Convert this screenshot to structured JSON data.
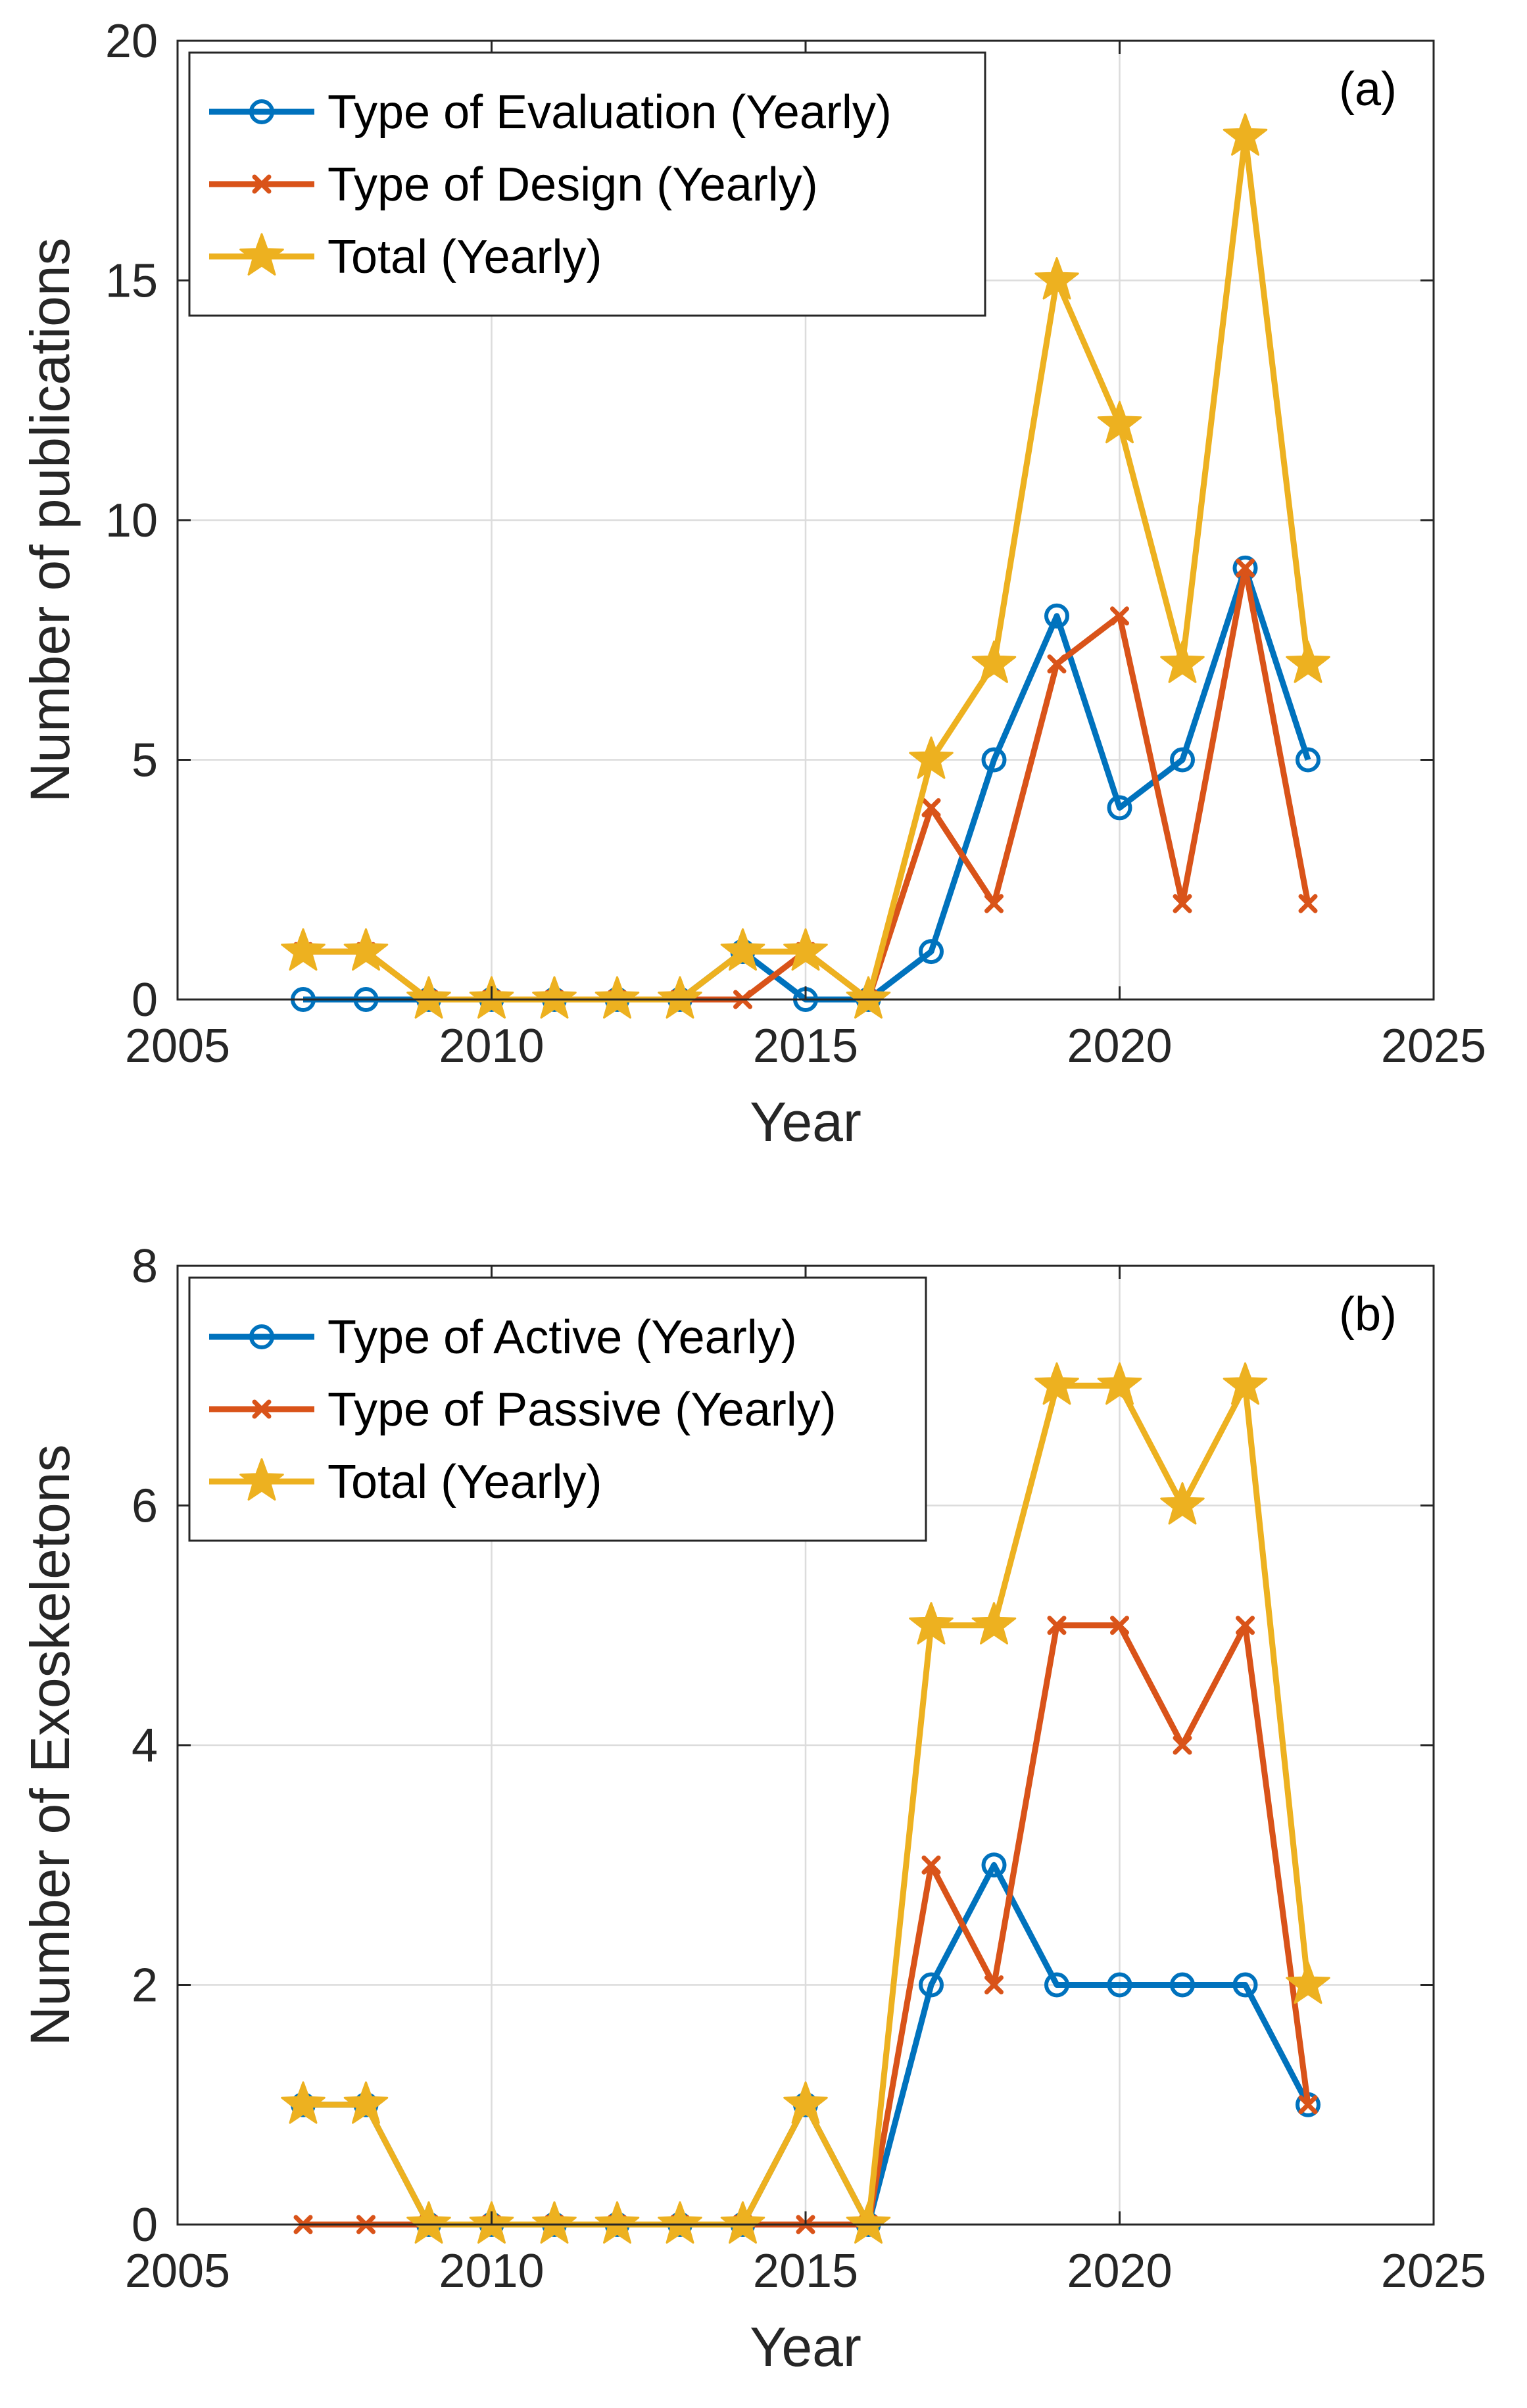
{
  "chart_data": [
    {
      "type": "line",
      "panel_label": "(a)",
      "title": "",
      "xlabel": "Year",
      "ylabel": "Number of publications",
      "xlim": [
        2005,
        2025
      ],
      "ylim": [
        0,
        20
      ],
      "xticks": [
        "2005",
        "2010",
        "2015",
        "2020",
        "2025"
      ],
      "yticks": [
        "0",
        "5",
        "10",
        "15",
        "20"
      ],
      "grid": true,
      "legend_position": "top-left",
      "x": [
        2007,
        2008,
        2009,
        2010,
        2011,
        2012,
        2013,
        2014,
        2015,
        2016,
        2017,
        2018,
        2019,
        2020,
        2021,
        2022,
        2023
      ],
      "series": [
        {
          "name": "Type of Evaluation (Yearly)",
          "marker": "circle",
          "color": "#0072BD",
          "values": [
            0,
            0,
            0,
            0,
            0,
            0,
            0,
            1,
            0,
            0,
            1,
            5,
            8,
            4,
            5,
            9,
            5
          ]
        },
        {
          "name": "Type of Design (Yearly)",
          "marker": "x",
          "color": "#D95319",
          "values": [
            1,
            1,
            0,
            0,
            0,
            0,
            0,
            0,
            1,
            0,
            4,
            2,
            7,
            8,
            2,
            9,
            2
          ]
        },
        {
          "name": "Total (Yearly)",
          "marker": "star",
          "color": "#EDB120",
          "values": [
            1,
            1,
            0,
            0,
            0,
            0,
            0,
            1,
            1,
            0,
            5,
            7,
            15,
            12,
            7,
            18,
            7
          ]
        }
      ]
    },
    {
      "type": "line",
      "panel_label": "(b)",
      "title": "",
      "xlabel": "Year",
      "ylabel": "Number of Exoskeletons",
      "xlim": [
        2005,
        2025
      ],
      "ylim": [
        0,
        8
      ],
      "xticks": [
        "2005",
        "2010",
        "2015",
        "2020",
        "2025"
      ],
      "yticks": [
        "0",
        "2",
        "4",
        "6",
        "8"
      ],
      "grid": true,
      "legend_position": "top-left",
      "x": [
        2007,
        2008,
        2009,
        2010,
        2011,
        2012,
        2013,
        2014,
        2015,
        2016,
        2017,
        2018,
        2019,
        2020,
        2021,
        2022,
        2023
      ],
      "series": [
        {
          "name": "Type of Active (Yearly)",
          "marker": "circle",
          "color": "#0072BD",
          "values": [
            1,
            1,
            0,
            0,
            0,
            0,
            0,
            0,
            1,
            0,
            2,
            3,
            2,
            2,
            2,
            2,
            1
          ]
        },
        {
          "name": "Type of Passive (Yearly)",
          "marker": "x",
          "color": "#D95319",
          "values": [
            0,
            0,
            0,
            0,
            0,
            0,
            0,
            0,
            0,
            0,
            3,
            2,
            5,
            5,
            4,
            5,
            1
          ]
        },
        {
          "name": "Total (Yearly)",
          "marker": "star",
          "color": "#EDB120",
          "values": [
            1,
            1,
            0,
            0,
            0,
            0,
            0,
            0,
            1,
            0,
            5,
            5,
            7,
            7,
            6,
            7,
            2
          ]
        }
      ]
    }
  ]
}
